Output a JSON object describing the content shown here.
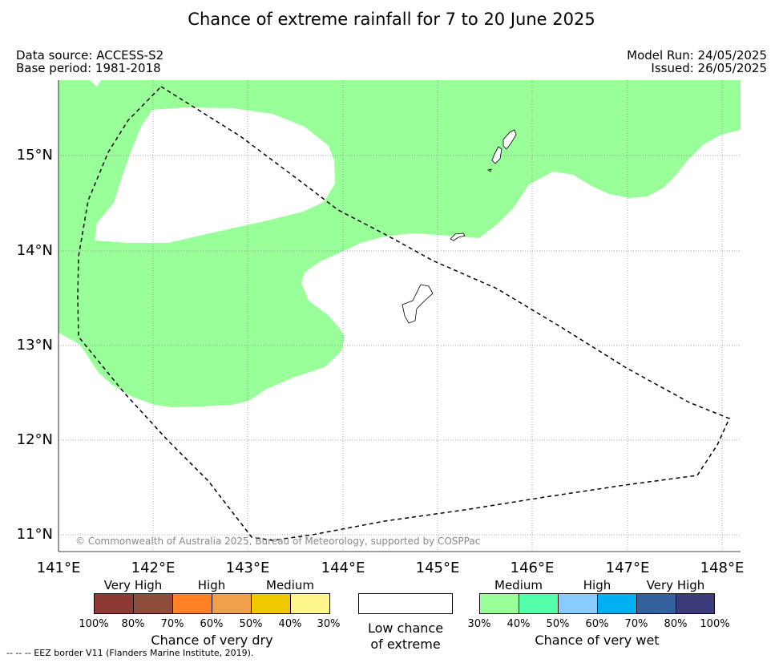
{
  "title": "Chance of extreme rainfall for 7 to 20 June 2025",
  "meta": {
    "data_source": "Data source: ACCESS-S2",
    "base_period": "Base period: 1981-2018",
    "model_run": "Model Run: 24/05/2025",
    "issued": "Issued: 26/05/2025"
  },
  "axes": {
    "lat_ticks": [
      "15°N",
      "14°N",
      "13°N",
      "12°N",
      "11°N"
    ],
    "lon_ticks": [
      "141°E",
      "142°E",
      "143°E",
      "144°E",
      "145°E",
      "146°E",
      "147°E",
      "148°E"
    ]
  },
  "copyright": "© Commonwealth of Australia 2025, Bureau of Meteorology, supported by COSPPac",
  "legend": {
    "dry": {
      "level_labels": [
        "Very High",
        "High",
        "Medium"
      ],
      "percent_labels": [
        "100%",
        "80%",
        "70%",
        "60%",
        "50%",
        "40%",
        "30%"
      ],
      "colors": [
        "#8c3a33",
        "#8f4e3c",
        "#ff8124",
        "#f0a04a",
        "#f0c800",
        "#fff68c"
      ],
      "title": "Chance of very dry"
    },
    "low": {
      "line1": "Low chance",
      "line2": "of extreme"
    },
    "wet": {
      "level_labels": [
        "Medium",
        "High",
        "Very High"
      ],
      "percent_labels": [
        "30%",
        "40%",
        "50%",
        "60%",
        "70%",
        "80%",
        "100%"
      ],
      "colors": [
        "#99ff99",
        "#55ffaa",
        "#88ccff",
        "#00b0f0",
        "#3560a0",
        "#3c3c7a"
      ],
      "title": "Chance of very wet"
    }
  },
  "eez_note": "-- -- -- EEZ border V11 (Flanders Marine Institute, 2019).",
  "colors": {
    "wet_medium_fill": "#99ff99",
    "grid": "#888888"
  }
}
